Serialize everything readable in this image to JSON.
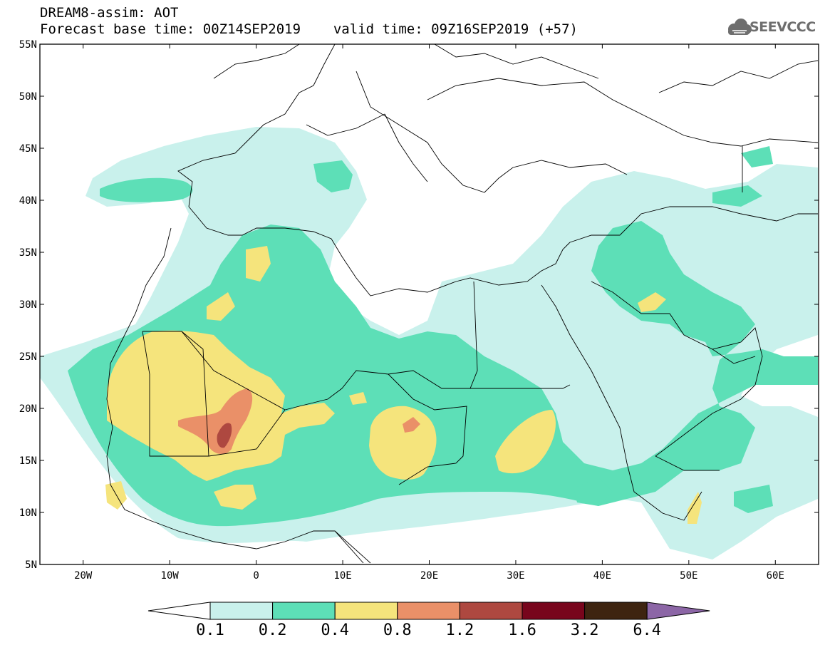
{
  "header": {
    "line1": "DREAM8-assim: AOT",
    "line2_base": "Forecast base time: 00Z14SEP2019",
    "line2_valid": "valid time: 09Z16SEP2019 (+57)"
  },
  "logo": {
    "text": "SEEVCCC",
    "icon": "cloud-icon",
    "color": "#6e6e6e"
  },
  "map": {
    "lon_range": [
      -25,
      65
    ],
    "lat_range": [
      5,
      55
    ],
    "lat_ticks": [
      {
        "value": 55,
        "label": "55N"
      },
      {
        "value": 50,
        "label": "50N"
      },
      {
        "value": 45,
        "label": "45N"
      },
      {
        "value": 40,
        "label": "40N"
      },
      {
        "value": 35,
        "label": "35N"
      },
      {
        "value": 30,
        "label": "30N"
      },
      {
        "value": 25,
        "label": "25N"
      },
      {
        "value": 20,
        "label": "20N"
      },
      {
        "value": 15,
        "label": "15N"
      },
      {
        "value": 10,
        "label": "10N"
      },
      {
        "value": 5,
        "label": "5N"
      }
    ],
    "lon_ticks": [
      {
        "value": -20,
        "label": "20W"
      },
      {
        "value": -10,
        "label": "10W"
      },
      {
        "value": 0,
        "label": "0"
      },
      {
        "value": 10,
        "label": "10E"
      },
      {
        "value": 20,
        "label": "20E"
      },
      {
        "value": 30,
        "label": "30E"
      },
      {
        "value": 40,
        "label": "40E"
      },
      {
        "value": 50,
        "label": "50E"
      },
      {
        "value": 60,
        "label": "60E"
      }
    ]
  },
  "colorbar": {
    "labels": [
      "0.1",
      "0.2",
      "0.4",
      "0.8",
      "1.2",
      "1.6",
      "3.2",
      "6.4"
    ],
    "colors": [
      "#c9f1ec",
      "#5ddfb7",
      "#f5e47c",
      "#ea9068",
      "#ae4840",
      "#78051c",
      "#3e2410",
      "#8c66a6"
    ],
    "under_color": "#ffffff"
  },
  "palette": {
    "lvl1": "#c9f1ec",
    "lvl2": "#5ddfb7",
    "lvl3": "#f5e47c",
    "lvl4": "#ea9068",
    "lvl5": "#ae4840"
  }
}
